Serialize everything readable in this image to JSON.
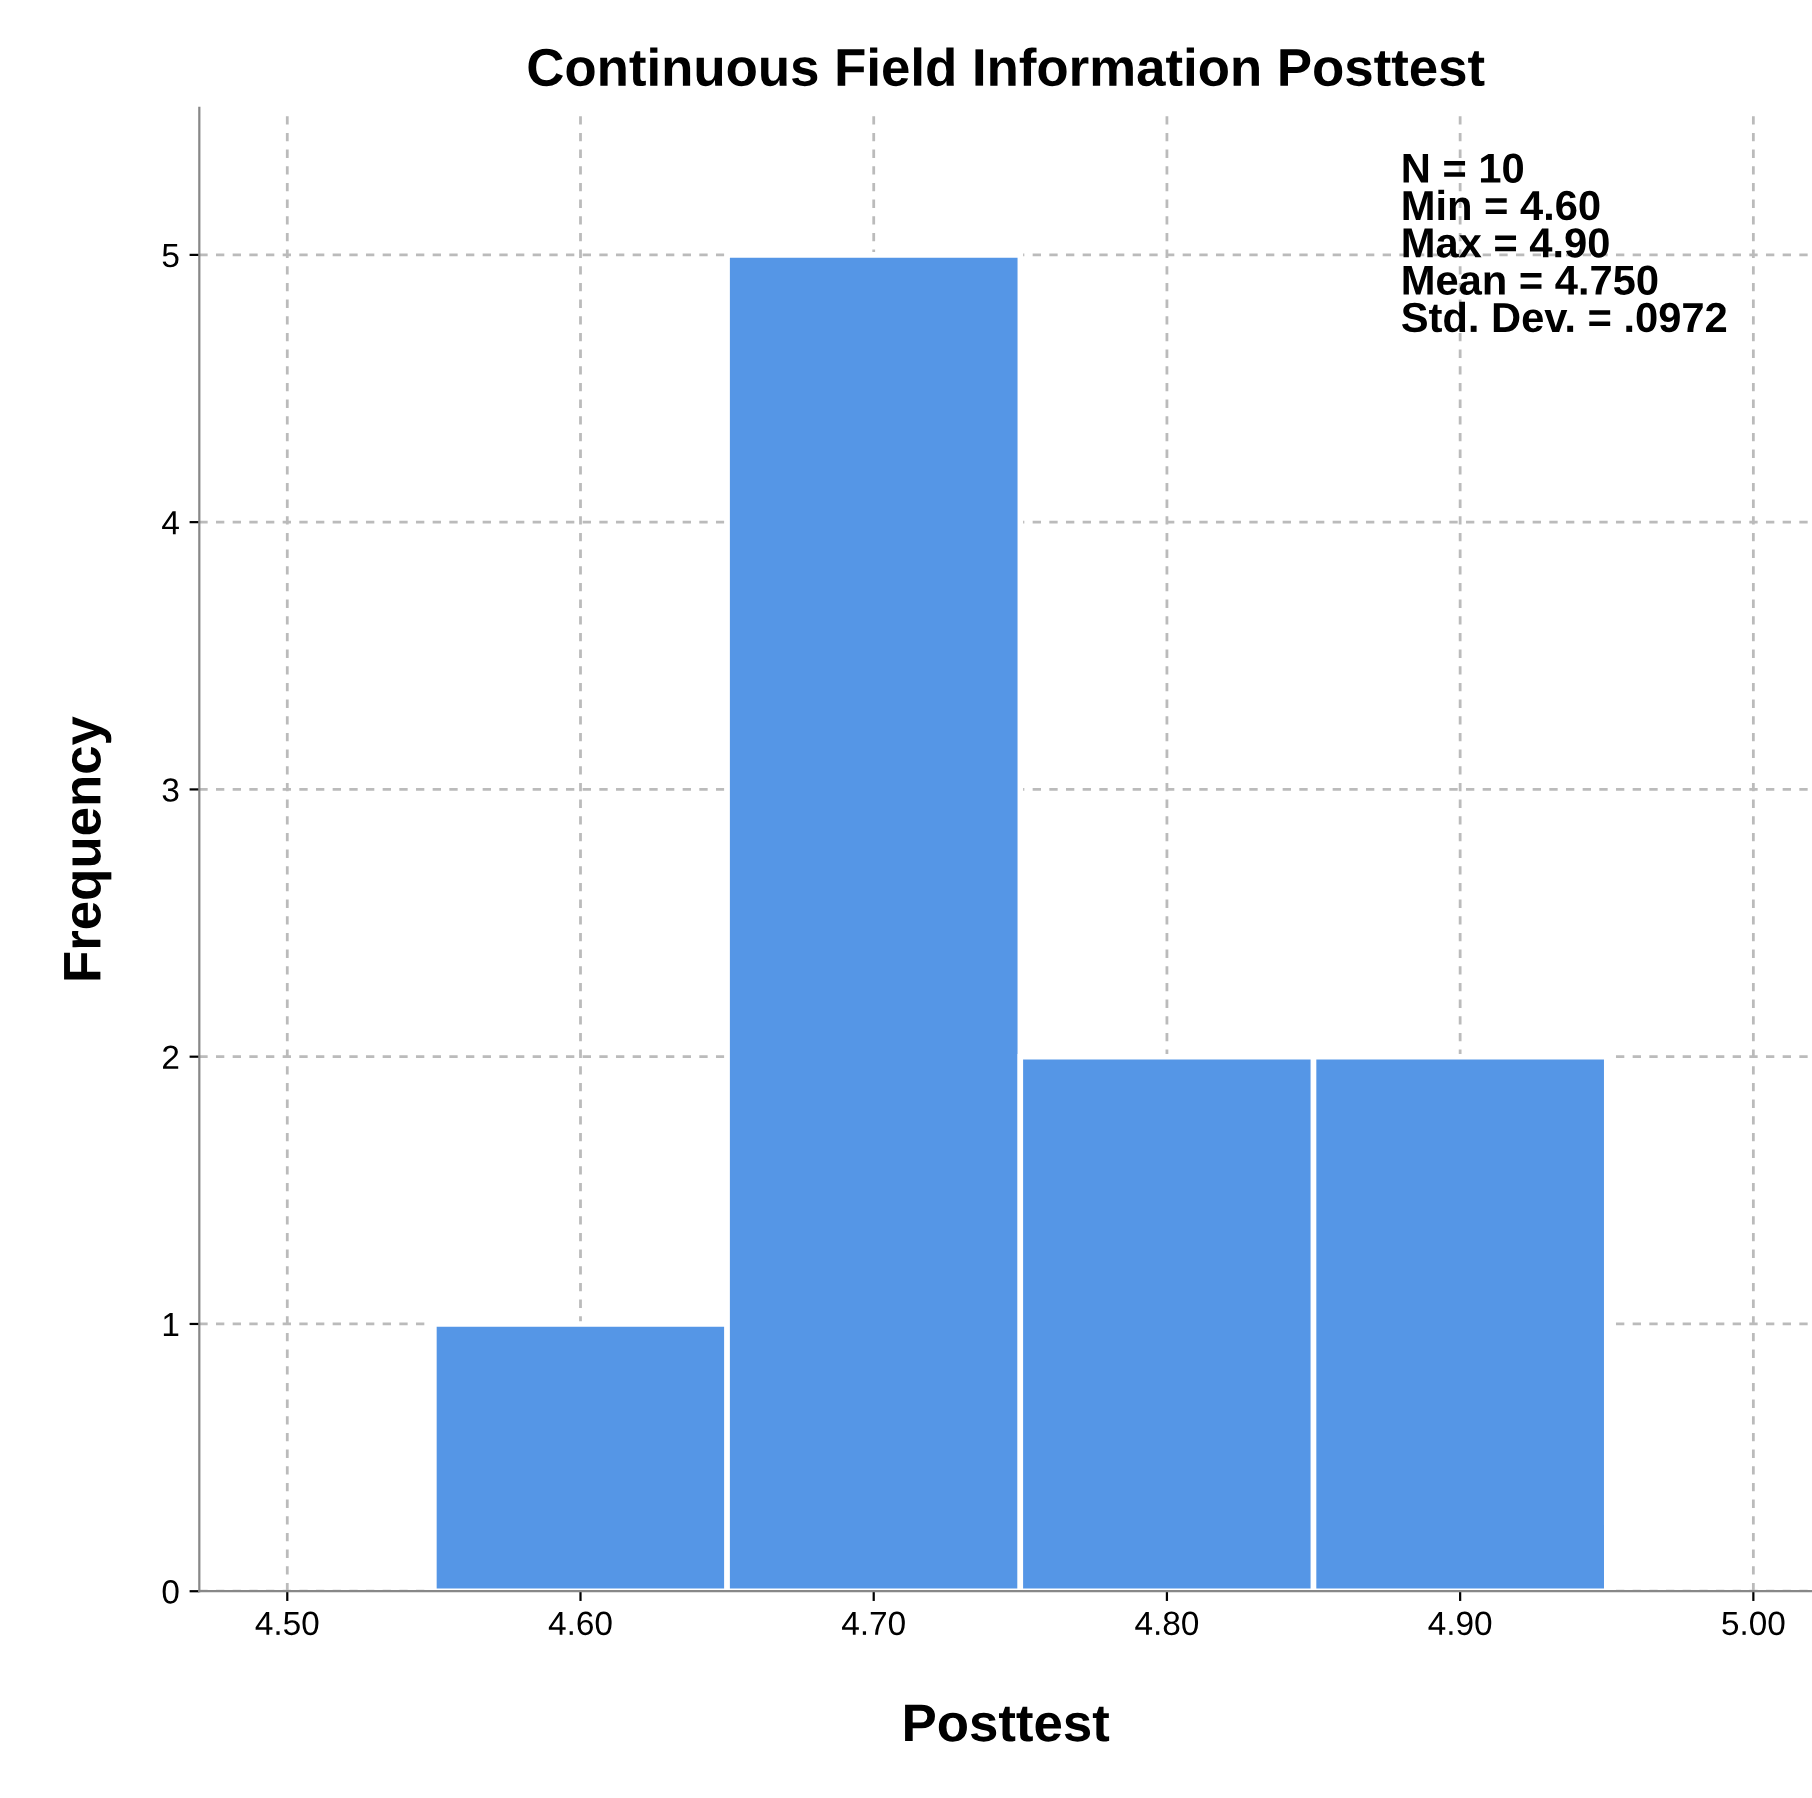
{
  "chart_data": {
    "type": "histogram",
    "title": "Continuous Field Information Posttest",
    "xlabel": "Posttest",
    "ylabel": "Frequency",
    "bins": [
      4.55,
      4.65,
      4.75,
      4.85,
      4.95
    ],
    "values": [
      1,
      5,
      2,
      2
    ],
    "color": "#5596e6",
    "xlim": [
      4.47,
      5.02
    ],
    "ylim": [
      0,
      5.55
    ],
    "xticks": [
      {
        "value": 4.5,
        "label": "4.50"
      },
      {
        "value": 4.6,
        "label": "4.60"
      },
      {
        "value": 4.7,
        "label": "4.70"
      },
      {
        "value": 4.8,
        "label": "4.80"
      },
      {
        "value": 4.9,
        "label": "4.90"
      },
      {
        "value": 5.0,
        "label": "5.00"
      }
    ],
    "yticks": [
      0,
      1,
      2,
      3,
      4,
      5
    ],
    "grid": true,
    "annotations": [
      "N = 10\nMin = 4.60\nMax = 4.90\nMean = 4.750\nStd. Dev. = .0972"
    ]
  }
}
